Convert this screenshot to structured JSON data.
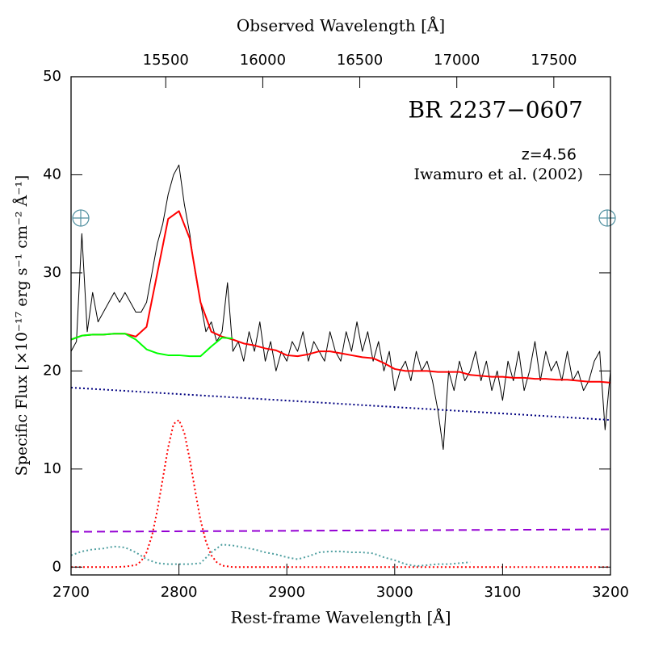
{
  "chart_data": {
    "type": "line",
    "title": "BR 2237−0607",
    "annotations": [
      "z=4.56",
      "Iwamuro et al. (2002)"
    ],
    "xlabel": "Rest-frame Wavelength [Å]",
    "x2label": "Observed Wavelength [Å]",
    "ylabel": "Specific Flux [×10⁻¹⁷ erg s⁻¹ cm⁻² Å⁻¹]",
    "xlim": [
      2700,
      3200
    ],
    "xticks": [
      2700,
      2800,
      2900,
      3000,
      3100,
      3200
    ],
    "x2lim": [
      15012,
      17792
    ],
    "x2ticks": [
      15500,
      16000,
      16500,
      17000,
      17500
    ],
    "ylim": [
      -0.8,
      50
    ],
    "yticks": [
      0,
      10,
      20,
      30,
      40,
      50
    ],
    "x": [
      2700,
      2710,
      2720,
      2730,
      2740,
      2750,
      2760,
      2770,
      2780,
      2790,
      2800,
      2810,
      2820,
      2830,
      2840,
      2850,
      2860,
      2870,
      2880,
      2890,
      2900,
      2910,
      2920,
      2930,
      2940,
      2950,
      2960,
      2970,
      2980,
      2990,
      3000,
      3010,
      3020,
      3030,
      3040,
      3050,
      3060,
      3070,
      3080,
      3090,
      3100,
      3110,
      3120,
      3130,
      3140,
      3150,
      3160,
      3170,
      3180,
      3190,
      3200
    ],
    "series": [
      {
        "color": "#000000",
        "style": "solid",
        "width": 1,
        "x": [
          2700,
          2705,
          2710,
          2715,
          2720,
          2725,
          2730,
          2735,
          2740,
          2745,
          2750,
          2755,
          2760,
          2765,
          2770,
          2775,
          2780,
          2785,
          2790,
          2795,
          2800,
          2805,
          2810,
          2815,
          2820,
          2825,
          2830,
          2835,
          2840,
          2845,
          2850,
          2855,
          2860,
          2865,
          2870,
          2875,
          2880,
          2885,
          2890,
          2895,
          2900,
          2905,
          2910,
          2915,
          2920,
          2925,
          2930,
          2935,
          2940,
          2945,
          2950,
          2955,
          2960,
          2965,
          2970,
          2975,
          2980,
          2985,
          2990,
          2995,
          3000,
          3005,
          3010,
          3015,
          3020,
          3025,
          3030,
          3035,
          3040,
          3045,
          3050,
          3055,
          3060,
          3065,
          3070,
          3075,
          3080,
          3085,
          3090,
          3095,
          3100,
          3105,
          3110,
          3115,
          3120,
          3125,
          3130,
          3135,
          3140,
          3145,
          3150,
          3155,
          3160,
          3165,
          3170,
          3175,
          3180,
          3185,
          3190,
          3195,
          3200
        ],
        "values": [
          22,
          23,
          34,
          24,
          28,
          25,
          26,
          27,
          28,
          27,
          28,
          27,
          26,
          26,
          27,
          30,
          33,
          35,
          38,
          40,
          41,
          37,
          34,
          30,
          27,
          24,
          25,
          23,
          24,
          29,
          22,
          23,
          21,
          24,
          22,
          25,
          21,
          23,
          20,
          22,
          21,
          23,
          22,
          24,
          21,
          23,
          22,
          21,
          24,
          22,
          21,
          24,
          22,
          25,
          22,
          24,
          21,
          23,
          20,
          22,
          18,
          20,
          21,
          19,
          22,
          20,
          21,
          19,
          16,
          12,
          20,
          18,
          21,
          19,
          20,
          22,
          19,
          21,
          18,
          20,
          17,
          21,
          19,
          22,
          18,
          20,
          23,
          19,
          22,
          20,
          21,
          19,
          22,
          19,
          20,
          18,
          19,
          21,
          22,
          14,
          20
        ]
      },
      {
        "color": "#ff0000",
        "style": "solid",
        "width": 2,
        "values": [
          23.2,
          23.6,
          23.7,
          23.7,
          23.8,
          23.8,
          23.5,
          24.5,
          30,
          35.5,
          36.3,
          33.5,
          27,
          24,
          23.5,
          23.2,
          22.8,
          22.6,
          22.3,
          22.1,
          21.6,
          21.5,
          21.7,
          22,
          22,
          21.8,
          21.6,
          21.4,
          21.3,
          20.8,
          20.2,
          20,
          20,
          20,
          19.9,
          19.9,
          19.9,
          19.6,
          19.5,
          19.4,
          19.4,
          19.3,
          19.3,
          19.2,
          19.2,
          19.1,
          19.1,
          19,
          18.9,
          18.9,
          18.8
        ]
      },
      {
        "color": "#00ff00",
        "style": "solid",
        "width": 2,
        "values": [
          23.2,
          23.6,
          23.7,
          23.7,
          23.8,
          23.8,
          23.2,
          22.2,
          21.8,
          21.6,
          21.6,
          21.5,
          21.5,
          22.5,
          23.4,
          23.3,
          null,
          null,
          null,
          null,
          null,
          null,
          null,
          null,
          null,
          null,
          null,
          null,
          null,
          null,
          null,
          null,
          null,
          null,
          null,
          null,
          null,
          null,
          null,
          null,
          null,
          null,
          null,
          null,
          null,
          null,
          null,
          null,
          null,
          null,
          null
        ]
      },
      {
        "color": "#000080",
        "style": "dotted",
        "width": 2,
        "x": [
          2700,
          3200
        ],
        "values": [
          18.3,
          15
        ]
      },
      {
        "color": "#ff0000",
        "style": "dotted",
        "width": 2,
        "x": [
          2700,
          2740,
          2750,
          2760,
          2765,
          2770,
          2775,
          2780,
          2785,
          2790,
          2795,
          2800,
          2805,
          2810,
          2815,
          2820,
          2825,
          2830,
          2835,
          2840,
          2850,
          3200
        ],
        "values": [
          0,
          0,
          0.05,
          0.2,
          0.6,
          1.5,
          3.2,
          5.8,
          9,
          12.2,
          14.6,
          15,
          13.7,
          11,
          7.8,
          4.8,
          2.6,
          1.2,
          0.5,
          0.15,
          0,
          0
        ]
      },
      {
        "color": "#9400d3",
        "style": "dashed",
        "width": 2,
        "x": [
          2700,
          3200
        ],
        "values": [
          3.6,
          3.85
        ]
      },
      {
        "color": "#4f9fa0",
        "style": "dotted",
        "width": 2,
        "values": [
          1.2,
          1.6,
          1.8,
          1.9,
          2.1,
          2.0,
          1.5,
          0.8,
          0.4,
          0.3,
          0.3,
          0.3,
          0.4,
          1.5,
          2.3,
          2.2,
          2.0,
          1.8,
          1.5,
          1.3,
          1.0,
          0.8,
          1.1,
          1.5,
          1.6,
          1.6,
          1.5,
          1.5,
          1.4,
          1.0,
          0.7,
          0.3,
          0.1,
          0.2,
          0.3,
          0.3,
          0.4,
          0.5,
          null,
          null,
          null,
          null,
          null,
          null,
          null,
          null,
          null,
          null,
          null,
          null,
          null
        ]
      }
    ]
  }
}
